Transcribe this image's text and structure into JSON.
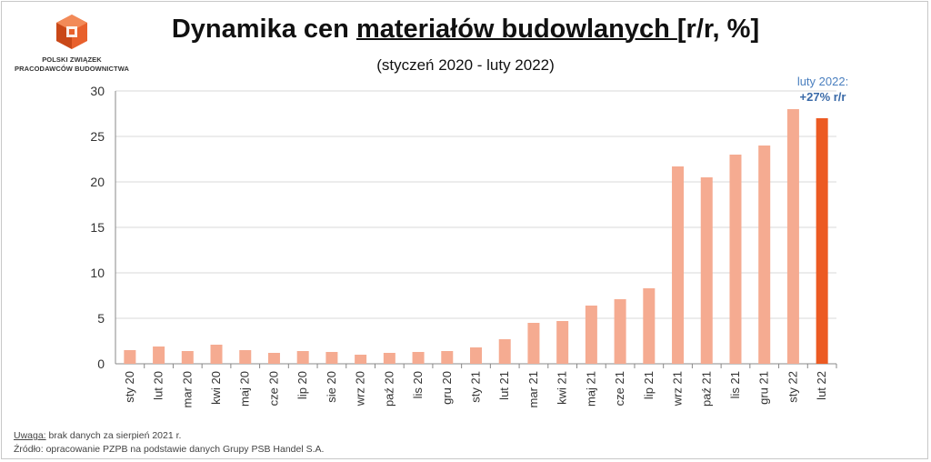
{
  "logo": {
    "line1": "POLSKI ZWIĄZEK",
    "line2": "PRACODAWCÓW BUDOWNICTWA"
  },
  "title": {
    "part1": "Dynamika cen ",
    "part2": "materiałów budowlanych ",
    "part3": "[r/r, %]"
  },
  "subtitle": "(styczeń 2020 - luty 2022)",
  "annotation": {
    "line1": "luty 2022:",
    "line2": "+27% r/r"
  },
  "footer": {
    "note_label": "Uwaga:",
    "note_text": " brak danych za sierpień 2021 r.",
    "source": "Źródło: opracowanie PZPB na podstawie danych Grupy PSB Handel S.A."
  },
  "colors": {
    "bar": "#f5ab91",
    "bar_highlight": "#ec5a22",
    "logo": "#e8602c",
    "gridline": "#d9d9d9",
    "axis": "#888888"
  },
  "chart_data": {
    "type": "bar",
    "title": "Dynamika cen materiałów budowlanych [r/r, %]",
    "subtitle": "(styczeń 2020 - luty 2022)",
    "xlabel": "",
    "ylabel": "",
    "ylim": [
      0,
      30
    ],
    "yticks": [
      0,
      5,
      10,
      15,
      20,
      25,
      30
    ],
    "grid": true,
    "categories": [
      "sty 20",
      "lut 20",
      "mar 20",
      "kwi 20",
      "maj 20",
      "cze 20",
      "lip 20",
      "sie 20",
      "wrz 20",
      "paź 20",
      "lis 20",
      "gru 20",
      "sty 21",
      "lut 21",
      "mar 21",
      "kwi 21",
      "maj 21",
      "cze 21",
      "lip 21",
      "wrz 21",
      "paź 21",
      "lis 21",
      "gru 21",
      "sty 22",
      "lut 22"
    ],
    "values": [
      1.5,
      1.9,
      1.4,
      2.1,
      1.5,
      1.2,
      1.4,
      1.3,
      1.0,
      1.2,
      1.3,
      1.4,
      1.8,
      2.7,
      4.5,
      4.7,
      6.4,
      7.1,
      8.3,
      21.7,
      20.5,
      23.0,
      24.0,
      28.0,
      27.0
    ],
    "highlight_index": 24
  }
}
